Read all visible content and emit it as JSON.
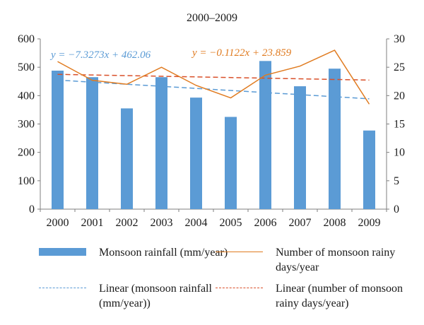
{
  "chart_data": {
    "type": "bar",
    "title": "2000–2009",
    "categories": [
      "2000",
      "2001",
      "2002",
      "2003",
      "2004",
      "2005",
      "2006",
      "2007",
      "2008",
      "2009"
    ],
    "series": [
      {
        "name": "Monsoon rainfall (mm/year)",
        "type": "bar",
        "axis": "left",
        "color": "#5b9bd5",
        "values": [
          488,
          465,
          355,
          465,
          393,
          325,
          522,
          433,
          495,
          277
        ]
      },
      {
        "name": "Number of monsoon rainy days/year",
        "type": "line",
        "axis": "right",
        "color": "#e07b20",
        "values": [
          26,
          22.7,
          22,
          25,
          21.8,
          19.6,
          23.6,
          25.2,
          28,
          18.5
        ]
      },
      {
        "name": "Linear (monsoon rainfall (mm/year))",
        "type": "trendline",
        "axis": "left",
        "color": "#5b9bd5",
        "style": "dashed",
        "equation": "y = −7.3273x + 462.06",
        "slope": -7.3273,
        "intercept": 462.06
      },
      {
        "name": "Linear (number of monsoon rainy days/year)",
        "type": "trendline",
        "axis": "right",
        "color": "#d9502a",
        "style": "dashed",
        "equation": "y = −0.1122x + 23.859",
        "slope": -0.1122,
        "intercept": 23.859
      }
    ],
    "left_axis": {
      "min": 0,
      "max": 600,
      "ticks": [
        "0",
        "100",
        "200",
        "300",
        "400",
        "500",
        "600"
      ]
    },
    "right_axis": {
      "min": 0,
      "max": 30,
      "ticks": [
        "0",
        "5",
        "10",
        "15",
        "20",
        "25",
        "30"
      ]
    },
    "grid": false,
    "legend_position": "bottom"
  },
  "legend": {
    "rainfall_label": "Monsoon rainfall (mm/year)",
    "days_label": "Number of monsoon rainy days/year",
    "rainfall_trend_label": "Linear (monsoon rainfall (mm/year))",
    "days_trend_label": "Linear (number of monsoon rainy days/year)"
  }
}
